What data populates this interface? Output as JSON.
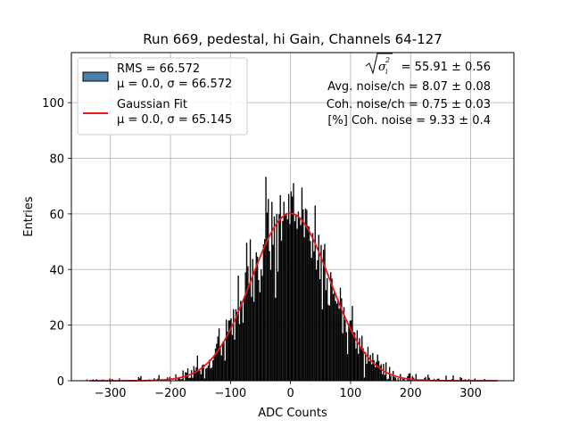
{
  "chart_data": {
    "type": "bar",
    "title": "Run 669, pedestal, hi Gain, Channels 64-127",
    "xlabel": "ADC Counts",
    "ylabel": "Entries",
    "xlim": [
      -365,
      372
    ],
    "ylim": [
      0,
      118
    ],
    "xticks": [
      -300,
      -200,
      -100,
      0,
      100,
      200,
      300
    ],
    "xtick_labels": [
      "−300",
      "−200",
      "−100",
      "0",
      "100",
      "200",
      "300"
    ],
    "yticks": [
      0,
      20,
      40,
      60,
      80,
      100
    ],
    "ytick_labels": [
      "0",
      "20",
      "40",
      "60",
      "80",
      "100"
    ],
    "grid": true,
    "legend_position": "top-left",
    "histogram": {
      "name_line1": "RMS = 66.572",
      "name_line2": "μ = 0.0, σ = 66.572",
      "bin_width": 2,
      "range": [
        -340,
        340
      ],
      "fill_color": "#000000",
      "legend_fill_color": "#4a7fb0",
      "summary": "Histogram of pedestal ADC counts (bins of 2 counts); individual bin heights scatter around the Gaussian envelope."
    },
    "fit": {
      "name_line1": "Gaussian Fit",
      "name_line2": "μ = 0.0, σ = 65.145",
      "type": "gaussian",
      "mu": 0.0,
      "sigma": 65.145,
      "amplitude": 60.2,
      "x_range": [
        -335,
        345
      ],
      "color": "#e8181c"
    },
    "annotations": {
      "sigma_formula_tail": " = 55.91 ± 0.56",
      "avg_noise": "Avg. noise/ch = 8.07 ± 0.08",
      "coh_noise": "Coh. noise/ch = 0.75 ± 0.03",
      "coh_noise_pct": "[%] Coh. noise = 9.33 ± 0.4"
    }
  }
}
